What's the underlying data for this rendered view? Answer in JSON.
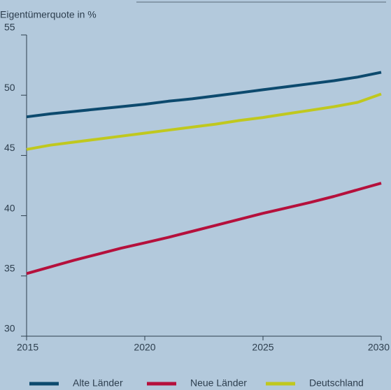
{
  "chart_data": {
    "type": "line",
    "title": "Eigentümerquote in %",
    "x": [
      2015,
      2016,
      2017,
      2018,
      2019,
      2020,
      2021,
      2022,
      2023,
      2024,
      2025,
      2026,
      2027,
      2028,
      2029,
      2030
    ],
    "xlim": [
      2015,
      2030
    ],
    "xticks": [
      2015,
      2020,
      2025,
      2030
    ],
    "ylim": [
      30,
      55
    ],
    "yticks": [
      30,
      35,
      40,
      45,
      50,
      55
    ],
    "legend": "bottom",
    "series": [
      {
        "name": "Alte Länder",
        "color": "#0d4a6e",
        "values": [
          48.2,
          48.45,
          48.65,
          48.85,
          49.05,
          49.25,
          49.5,
          49.7,
          49.95,
          50.2,
          50.45,
          50.7,
          50.95,
          51.2,
          51.5,
          51.9
        ]
      },
      {
        "name": "Neue Länder",
        "color": "#b5103c",
        "values": [
          35.2,
          35.75,
          36.3,
          36.8,
          37.3,
          37.75,
          38.2,
          38.7,
          39.2,
          39.7,
          40.2,
          40.65,
          41.1,
          41.6,
          42.15,
          42.7
        ]
      },
      {
        "name": "Deutschland",
        "color": "#c0c81e",
        "values": [
          45.5,
          45.85,
          46.1,
          46.35,
          46.6,
          46.85,
          47.1,
          47.35,
          47.6,
          47.9,
          48.15,
          48.45,
          48.75,
          49.05,
          49.4,
          50.1
        ]
      }
    ]
  }
}
